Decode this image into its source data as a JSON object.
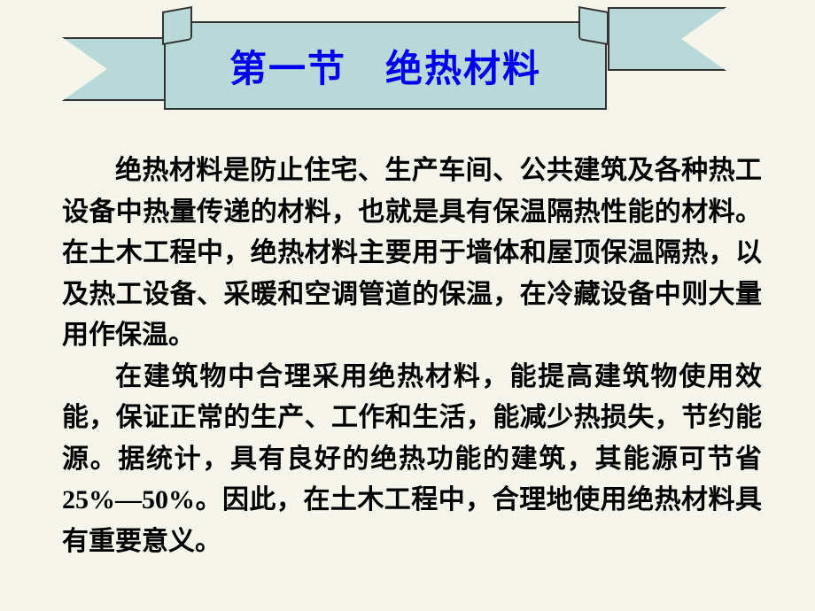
{
  "banner": {
    "title": "第一节　绝热材料",
    "banner_bg": "#b9d9d9",
    "title_color": "#0000ee",
    "title_fontsize": 42
  },
  "page": {
    "background_color": "#f5f5eb",
    "body_text_color": "#000000",
    "body_fontsize": 30,
    "font_family": "KaiTi"
  },
  "paragraphs": {
    "p1": "绝热材料是防止住宅、生产车间、公共建筑及各种热工设备中热量传递的材料，也就是具有保温隔热性能的材料。在土木工程中，绝热材料主要用于墙体和屋顶保温隔热，以及热工设备、采暖和空调管道的保温，在冷藏设备中则大量用作保温。",
    "p2": "在建筑物中合理采用绝热材料，能提高建筑物使用效能，保证正常的生产、工作和生活，能减少热损失，节约能源。据统计，具有良好的绝热功能的建筑，其能源可节省25%—50%。因此，在土木工程中，合理地使用绝热材料具有重要意义。"
  }
}
